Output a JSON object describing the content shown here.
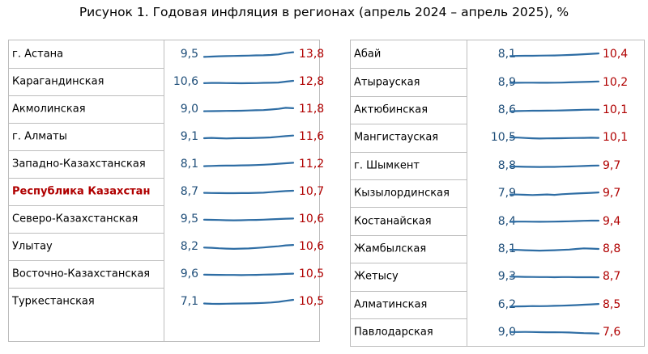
{
  "title": "Рисунок 1. Годовая инфляция в регионах (апрель 2024 – апрель 2025), %",
  "colors": {
    "start": "#1f4e79",
    "end": "#b00000",
    "line": "#2e6da4",
    "highlight": "#b00000"
  },
  "chart_data": [
    {
      "type": "table",
      "columns": [
        "region",
        "april_2024",
        "april_2025"
      ],
      "rows": [
        {
          "region": "г. Астана",
          "start": "9,5",
          "end": "13,8",
          "series": [
            9.5,
            9.8,
            10.1,
            10.2,
            10.4,
            10.5,
            10.7,
            10.9,
            11.0,
            11.3,
            11.8,
            13.0,
            13.8
          ]
        },
        {
          "region": "Карагандинская",
          "start": "10,6",
          "end": "12,8",
          "series": [
            10.6,
            10.8,
            10.8,
            10.7,
            10.6,
            10.5,
            10.6,
            10.7,
            10.9,
            11.0,
            11.2,
            12.0,
            12.8
          ]
        },
        {
          "region": "Акмолинская",
          "start": "9,0",
          "end": "11,8",
          "series": [
            9.0,
            9.1,
            9.2,
            9.3,
            9.4,
            9.5,
            9.7,
            9.9,
            10.1,
            10.6,
            11.2,
            12.2,
            11.8
          ]
        },
        {
          "region": "г. Алматы",
          "start": "9,1",
          "end": "11,6",
          "series": [
            9.1,
            9.4,
            9.1,
            8.9,
            9.1,
            9.3,
            9.2,
            9.4,
            9.6,
            9.9,
            10.5,
            11.1,
            11.6
          ]
        },
        {
          "region": "Западно-Казахстанская",
          "start": "8,1",
          "end": "11,2",
          "series": [
            8.1,
            8.3,
            8.5,
            8.6,
            8.6,
            8.8,
            8.9,
            9.1,
            9.4,
            9.8,
            10.3,
            10.8,
            11.2
          ]
        },
        {
          "region": "Республика Казахстан",
          "start": "8,7",
          "end": "10,7",
          "highlight": true,
          "series": [
            8.7,
            8.6,
            8.5,
            8.4,
            8.4,
            8.5,
            8.5,
            8.7,
            8.9,
            9.4,
            9.9,
            10.4,
            10.7
          ]
        },
        {
          "region": "Северо-Казахстанская",
          "start": "9,5",
          "end": "10,6",
          "series": [
            9.5,
            9.4,
            9.2,
            9.0,
            8.9,
            9.0,
            9.2,
            9.3,
            9.5,
            9.8,
            10.1,
            10.4,
            10.6
          ]
        },
        {
          "region": "Улытау",
          "start": "8,2",
          "end": "10,6",
          "series": [
            8.2,
            8.0,
            7.5,
            7.2,
            7.0,
            7.2,
            7.4,
            7.8,
            8.3,
            8.9,
            9.4,
            10.2,
            10.6
          ]
        },
        {
          "region": "Восточно-Казахстанская",
          "start": "9,6",
          "end": "10,5",
          "series": [
            9.6,
            9.5,
            9.4,
            9.3,
            9.3,
            9.2,
            9.3,
            9.4,
            9.6,
            9.8,
            10.0,
            10.3,
            10.5
          ]
        },
        {
          "region": "Туркестанская",
          "start": "7,1",
          "end": "10,5",
          "series": [
            7.1,
            6.8,
            6.7,
            6.9,
            7.0,
            7.1,
            7.2,
            7.4,
            7.6,
            8.0,
            8.6,
            9.6,
            10.5
          ]
        },
        {
          "region": "Абай",
          "start": "8,1",
          "end": "10,4",
          "series": [
            8.1,
            8.2,
            8.3,
            8.3,
            8.4,
            8.5,
            8.6,
            8.8,
            9.0,
            9.3,
            9.7,
            10.1,
            10.4
          ]
        },
        {
          "region": "Атырауская",
          "start": "8,9",
          "end": "10,2",
          "series": [
            8.9,
            9.0,
            9.1,
            9.1,
            9.0,
            9.0,
            9.1,
            9.2,
            9.4,
            9.6,
            9.8,
            10.0,
            10.2
          ]
        },
        {
          "region": "Актюбинская",
          "start": "8,6",
          "end": "10,1",
          "series": [
            8.6,
            8.8,
            9.0,
            9.1,
            9.1,
            9.2,
            9.3,
            9.4,
            9.6,
            9.8,
            10.0,
            10.1,
            10.1
          ]
        },
        {
          "region": "Мангистауская",
          "start": "10,5",
          "end": "10,1",
          "series": [
            10.5,
            10.4,
            10.0,
            9.7,
            9.5,
            9.6,
            9.7,
            9.8,
            9.9,
            10.0,
            10.1,
            10.2,
            10.1
          ]
        },
        {
          "region": "г. Шымкент",
          "start": "8,8",
          "end": "9,7",
          "series": [
            8.8,
            8.7,
            8.5,
            8.4,
            8.3,
            8.4,
            8.4,
            8.6,
            8.8,
            9.0,
            9.2,
            9.5,
            9.7
          ]
        },
        {
          "region": "Кызылординская",
          "start": "7,9",
          "end": "9,7",
          "series": [
            7.9,
            7.8,
            7.6,
            7.4,
            7.6,
            7.9,
            7.5,
            8.1,
            8.5,
            8.8,
            9.1,
            9.4,
            9.7
          ]
        },
        {
          "region": "Костанайская",
          "start": "8,4",
          "end": "9,4",
          "series": [
            8.4,
            8.5,
            8.5,
            8.4,
            8.3,
            8.4,
            8.5,
            8.6,
            8.8,
            9.0,
            9.2,
            9.4,
            9.4
          ]
        },
        {
          "region": "Жамбылская",
          "start": "8,1",
          "end": "8,8",
          "series": [
            8.1,
            7.9,
            7.6,
            7.4,
            7.3,
            7.4,
            7.6,
            7.9,
            8.2,
            8.8,
            9.3,
            9.1,
            8.8
          ]
        },
        {
          "region": "Жетысу",
          "start": "9,3",
          "end": "8,7",
          "series": [
            9.3,
            9.2,
            9.1,
            9.0,
            8.9,
            8.9,
            8.8,
            8.9,
            8.9,
            8.8,
            8.8,
            8.8,
            8.7
          ]
        },
        {
          "region": "Алматинская",
          "start": "6,2",
          "end": "8,5",
          "series": [
            6.2,
            6.3,
            6.4,
            6.6,
            6.5,
            6.6,
            6.8,
            7.0,
            7.2,
            7.5,
            7.9,
            8.2,
            8.5
          ]
        },
        {
          "region": "Павлодарская",
          "start": "9,0",
          "end": "7,6",
          "series": [
            9.0,
            9.0,
            9.1,
            9.0,
            8.9,
            8.8,
            8.8,
            8.7,
            8.6,
            8.3,
            8.0,
            7.8,
            7.6
          ]
        }
      ]
    }
  ]
}
